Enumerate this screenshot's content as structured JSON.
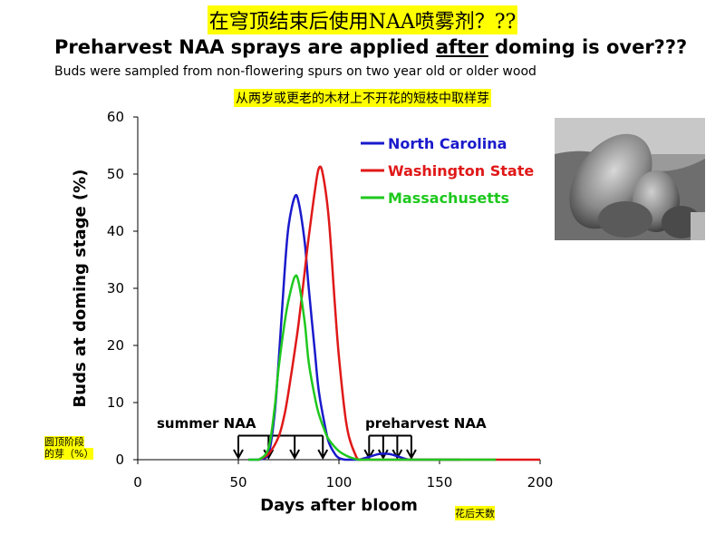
{
  "zh_title": "在穹顶结束后使用NAA喷雾剂？??",
  "title_parts": [
    "Preharvest NAA sprays are applied ",
    "after",
    " doming is over???"
  ],
  "subtitle": "Buds were sampled from non-flowering spurs on two year old or older wood",
  "zh_subtitle": "从两岁或更老的木材上不开花的短枝中取样芽",
  "zh_ylabel_lines": [
    "圆顶阶段",
    "的芽（%）"
  ],
  "zh_xlabel": "花后天数",
  "photo": {
    "icon": "sem-bud-micrograph"
  },
  "colors": {
    "north_carolina": "#1a1acc",
    "washington_state": "#e01818",
    "massachusetts": "#1ec81e",
    "highlight": "#ffff00"
  },
  "chart_data": {
    "type": "line",
    "xlabel": "Days after bloom",
    "ylabel": "Buds at doming stage (%)",
    "xlim": [
      0,
      200
    ],
    "ylim": [
      0,
      60
    ],
    "x_ticks": [
      0,
      50,
      100,
      150,
      200
    ],
    "y_ticks": [
      0,
      10,
      20,
      30,
      40,
      50,
      60
    ],
    "grid": false,
    "legend_position": "top-right",
    "series": [
      {
        "name": "North Carolina",
        "color": "#1a1acc",
        "x": [
          55,
          60,
          65,
          68,
          70,
          73,
          75,
          78,
          80,
          83,
          85,
          88,
          90,
          93,
          95,
          98,
          100,
          103,
          106,
          110,
          115,
          120,
          125,
          130,
          135,
          145,
          160
        ],
        "y": [
          0,
          0,
          1,
          8,
          17,
          33,
          41,
          46,
          45,
          38,
          30,
          19,
          12,
          6,
          3,
          1,
          0.3,
          0,
          0,
          0,
          0.5,
          1,
          1,
          0.5,
          0,
          0,
          0
        ]
      },
      {
        "name": "Washington State",
        "color": "#e01818",
        "x": [
          60,
          65,
          70,
          73,
          75,
          78,
          80,
          83,
          85,
          88,
          90,
          92,
          95,
          98,
          100,
          103,
          105,
          108,
          110,
          115,
          120,
          140,
          160,
          180,
          200
        ],
        "y": [
          0,
          1,
          4,
          8,
          12,
          19,
          24,
          33,
          39,
          47,
          51,
          50,
          42,
          27,
          18,
          8,
          4,
          1,
          0,
          0,
          0,
          0,
          0,
          0,
          0
        ]
      },
      {
        "name": "Massachusetts",
        "color": "#1ec81e",
        "x": [
          55,
          60,
          65,
          68,
          70,
          73,
          75,
          78,
          80,
          83,
          85,
          88,
          90,
          93,
          95,
          100,
          105,
          110,
          115,
          120,
          130,
          140,
          160,
          178
        ],
        "y": [
          0,
          0,
          2,
          9,
          16,
          24,
          28,
          32,
          31,
          24,
          17,
          11,
          8,
          5,
          3.5,
          1.5,
          0.5,
          0,
          0,
          0,
          0,
          0,
          0,
          0
        ]
      }
    ],
    "annotations": [
      {
        "label": "summer NAA",
        "bracket_from": 50,
        "bracket_to": 92,
        "arrows_at": [
          50,
          65,
          78,
          92
        ]
      },
      {
        "label": "preharvest NAA",
        "bracket_from": 115,
        "bracket_to": 136,
        "arrows_at": [
          115,
          122,
          129,
          136
        ]
      }
    ]
  }
}
